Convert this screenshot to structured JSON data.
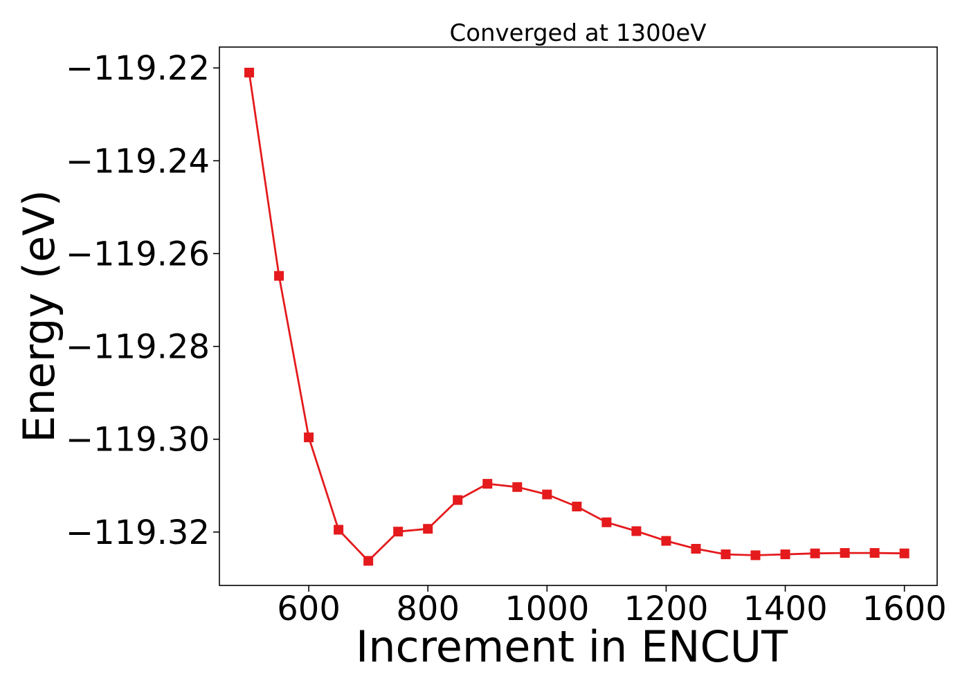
{
  "chart_data": {
    "type": "line",
    "title": "Converged at 1300eV",
    "xlabel": "Increment in ENCUT",
    "ylabel": "Energy (eV)",
    "xlim": [
      450,
      1655
    ],
    "ylim": [
      -119.3315,
      -119.2155
    ],
    "xticks": [
      600,
      800,
      1000,
      1200,
      1400,
      1600
    ],
    "xtick_labels": [
      "600",
      "800",
      "1000",
      "1200",
      "1400",
      "1600"
    ],
    "yticks": [
      -119.22,
      -119.24,
      -119.26,
      -119.28,
      -119.3,
      -119.32
    ],
    "ytick_labels": [
      "−119.22",
      "−119.24",
      "−119.26",
      "−119.28",
      "−119.30",
      "−119.32"
    ],
    "grid": false,
    "legend": "none",
    "series": [
      {
        "color": "#e41a1c",
        "marker": "square",
        "x": [
          500,
          550,
          600,
          650,
          700,
          750,
          800,
          850,
          900,
          950,
          1000,
          1050,
          1100,
          1150,
          1200,
          1250,
          1300,
          1350,
          1400,
          1450,
          1500,
          1550,
          1600
        ],
        "y": [
          -119.221,
          -119.2648,
          -119.2996,
          -119.3195,
          -119.3262,
          -119.3199,
          -119.3193,
          -119.3131,
          -119.3096,
          -119.3103,
          -119.3119,
          -119.3145,
          -119.3179,
          -119.3198,
          -119.3219,
          -119.3236,
          -119.3248,
          -119.325,
          -119.3248,
          -119.3246,
          -119.3245,
          -119.3245,
          -119.3246
        ]
      }
    ]
  }
}
